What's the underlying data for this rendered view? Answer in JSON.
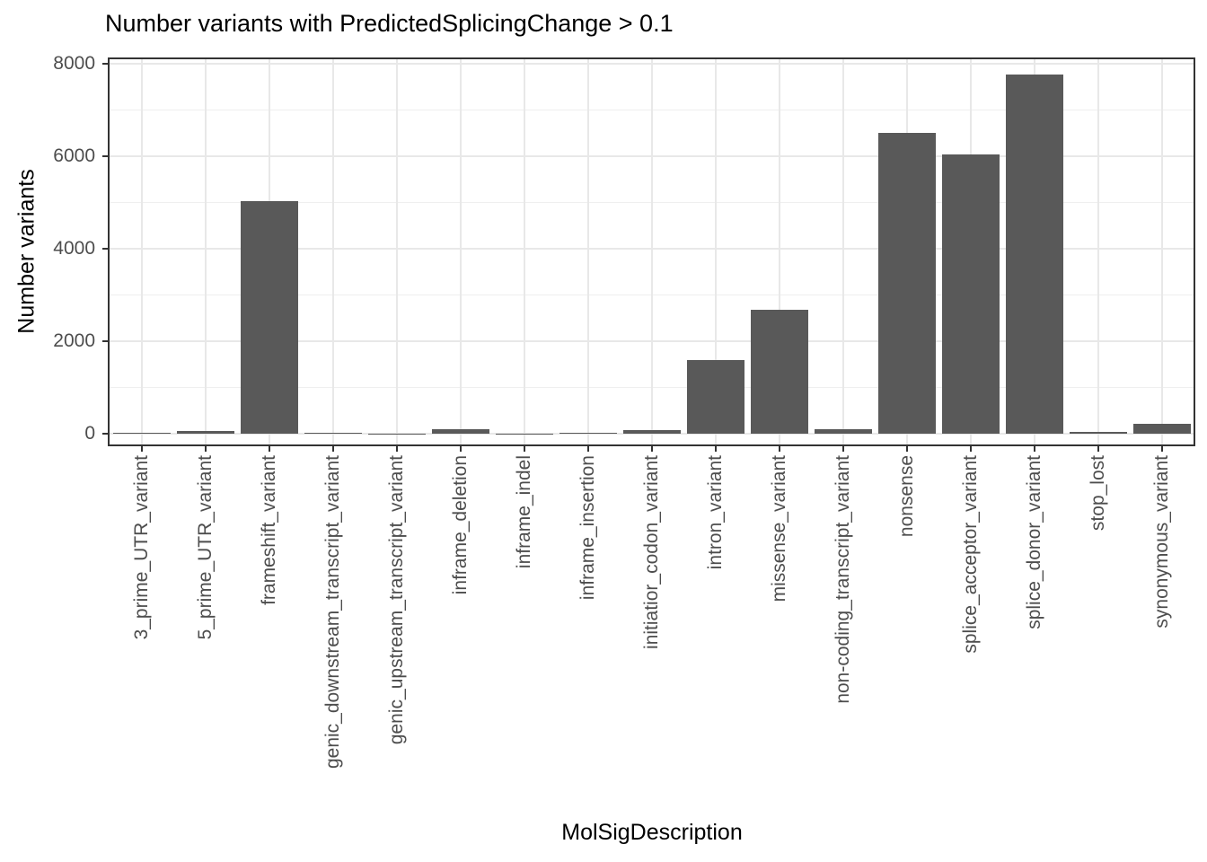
{
  "chart_data": {
    "type": "bar",
    "title": "Number variants with PredictedSplicingChange > 0.1",
    "xlabel": "MolSigDescription",
    "ylabel": "Number variants",
    "categories": [
      "3_prime_UTR_variant",
      "5_prime_UTR_variant",
      "frameshift_variant",
      "genic_downstream_transcript_variant",
      "genic_upstream_transcript_variant",
      "inframe_deletion",
      "inframe_indel",
      "inframe_insertion",
      "initiatior_codon_variant",
      "intron_variant",
      "missense_variant",
      "non-coding_transcript_variant",
      "nonsense",
      "splice_acceptor_variant",
      "splice_donor_variant",
      "stop_lost",
      "synonymous_variant"
    ],
    "values": [
      25,
      55,
      5030,
      25,
      8,
      100,
      5,
      20,
      80,
      1590,
      2670,
      90,
      6510,
      6030,
      7760,
      40,
      220
    ],
    "yticks": [
      0,
      2000,
      4000,
      6000,
      8000
    ],
    "yticks_minor": [
      1000,
      3000,
      5000,
      7000
    ],
    "ylim": [
      0,
      8100
    ],
    "grid": true,
    "legend_position": "none",
    "bar_color": "#595959",
    "panel_border_color": "#333333",
    "grid_major_color": "#e8e8e8",
    "grid_minor_color": "#efefef",
    "axis_text_color": "#4d4d4d",
    "tick_color": "#333333",
    "title_color": "#000000"
  }
}
